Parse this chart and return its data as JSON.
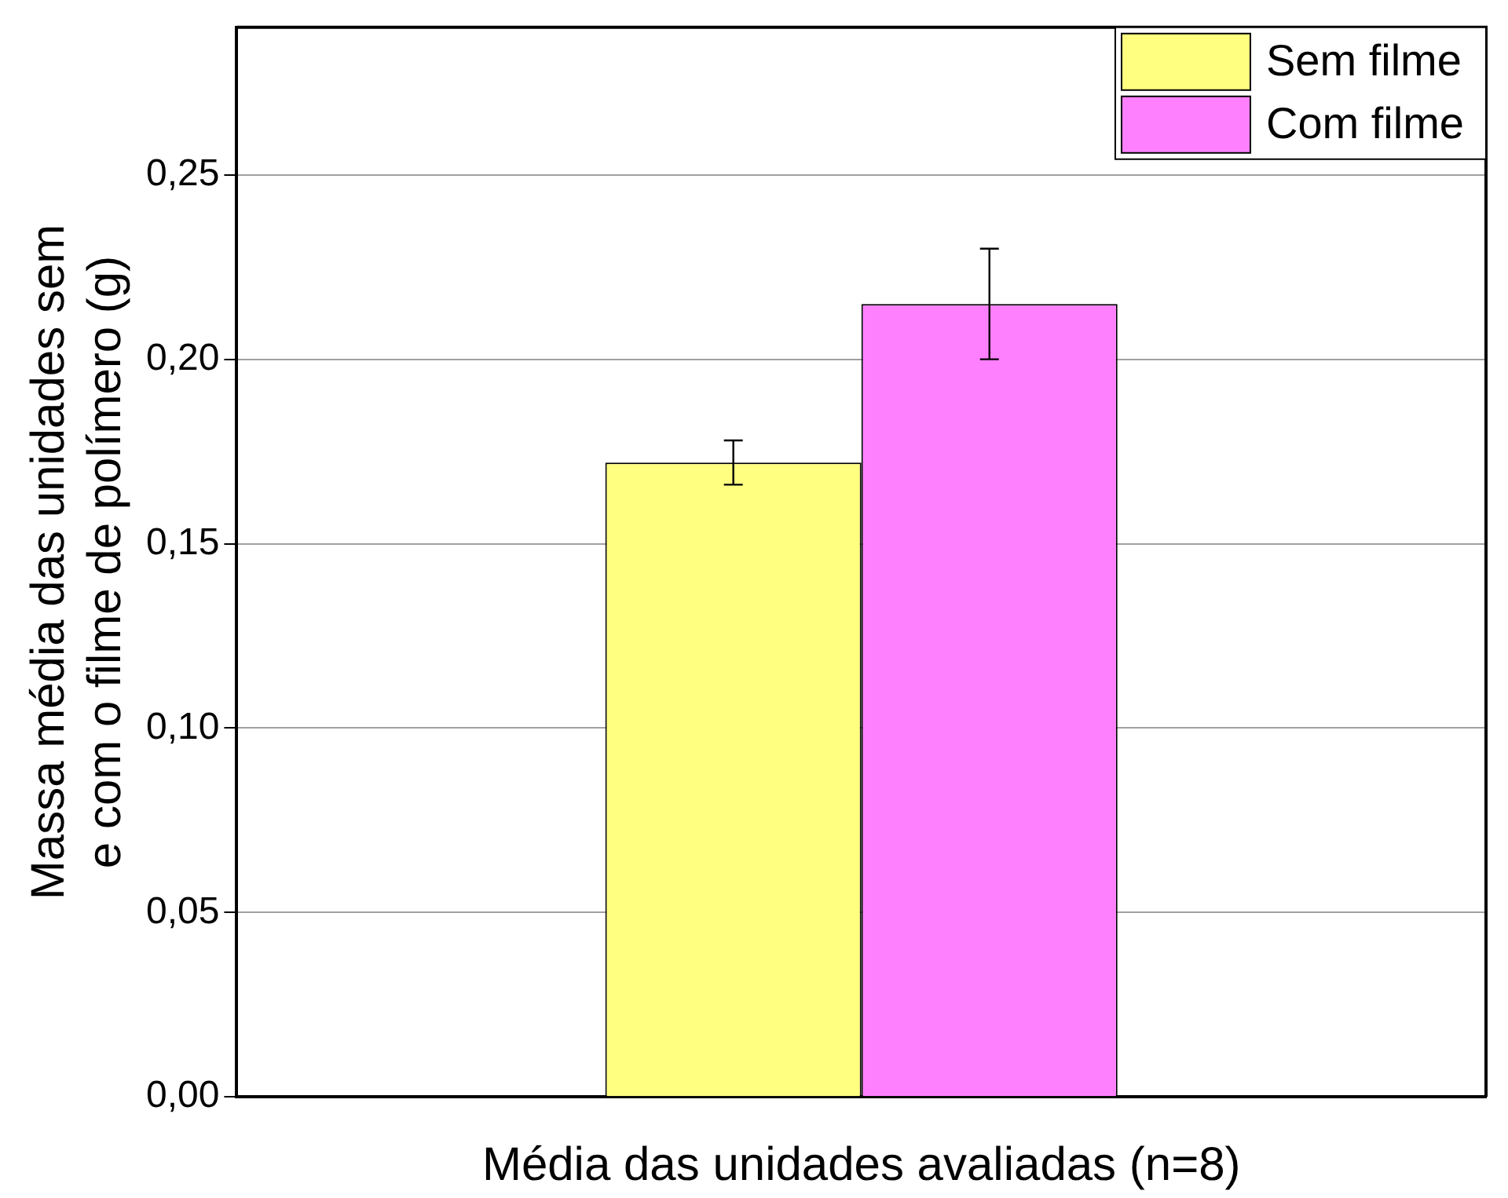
{
  "chart_data": {
    "type": "bar",
    "xlabel": "Média das unidades avaliadas (n=8)",
    "ylabel": "Massa média das unidades sem e com o filme de polímero (g)",
    "categories": [
      null
    ],
    "series": [
      {
        "name": "Sem filme",
        "color": "#ffff80",
        "values": [
          0.172
        ],
        "errors": [
          0.006
        ]
      },
      {
        "name": "Com filme",
        "color": "#ff80ff",
        "values": [
          0.215
        ],
        "errors": [
          0.015
        ]
      }
    ],
    "ylim": [
      0,
      0.29
    ],
    "yticks": [
      {
        "value": 0,
        "label": "0,00"
      },
      {
        "value": 0.05,
        "label": "0,05"
      },
      {
        "value": 0.1,
        "label": "0,10"
      },
      {
        "value": 0.15,
        "label": "0,15"
      },
      {
        "value": 0.2,
        "label": "0,20"
      },
      {
        "value": 0.25,
        "label": "0,25"
      }
    ],
    "grid": "y",
    "legend": "top right"
  }
}
